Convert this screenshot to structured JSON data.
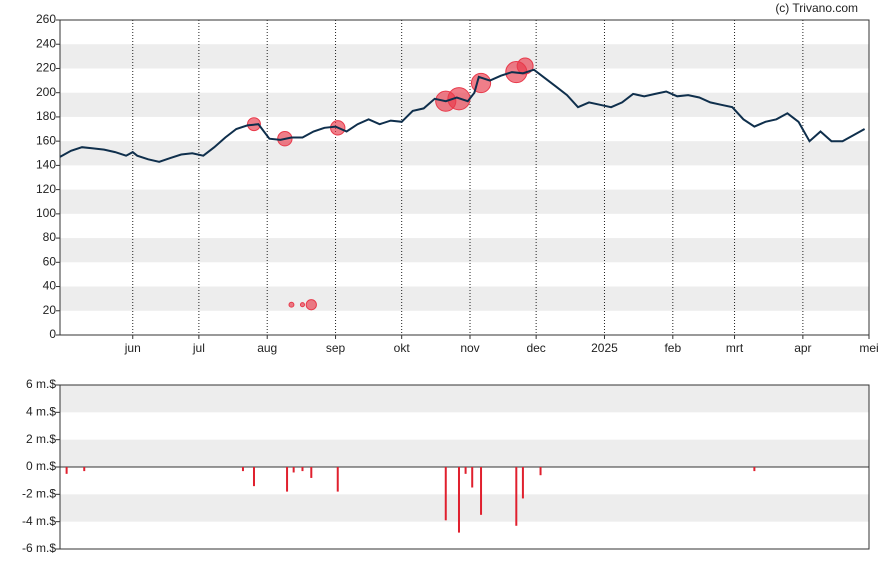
{
  "source": "(c) Trivano.com",
  "chart_data": [
    {
      "type": "line",
      "color": "#0f2f4c",
      "grid": "bands",
      "x": [
        0,
        5,
        10,
        15,
        20,
        25,
        30,
        33,
        35,
        40,
        45,
        50,
        55,
        60,
        65,
        70,
        75,
        80,
        85,
        90,
        95,
        100,
        105,
        110,
        115,
        120,
        125,
        130,
        135,
        140,
        145,
        150,
        155,
        160,
        165,
        170,
        175,
        180,
        185,
        188,
        190,
        195,
        200,
        205,
        210,
        215,
        220,
        225,
        230,
        235,
        240,
        245,
        250,
        255,
        260,
        265,
        270,
        275,
        280,
        285,
        290,
        295,
        300,
        305,
        310,
        315,
        320,
        325,
        330,
        335,
        340,
        345,
        350,
        355,
        360,
        365
      ],
      "values": [
        147,
        152,
        155,
        154,
        153,
        151,
        148,
        151,
        148,
        145,
        143,
        146,
        149,
        150,
        148,
        155,
        163,
        170,
        173,
        174,
        162,
        161,
        163,
        163,
        168,
        171,
        172,
        168,
        174,
        178,
        174,
        177,
        176,
        185,
        187,
        195,
        193,
        196,
        193,
        200,
        213,
        210,
        214,
        217,
        216,
        219,
        212,
        205,
        198,
        188,
        192,
        190,
        188,
        192,
        199,
        197,
        199,
        201,
        197,
        198,
        196,
        192,
        190,
        188,
        178,
        172,
        176,
        178,
        183,
        176,
        160,
        168,
        160,
        160,
        165,
        170
      ],
      "trades": {
        "color": "#e8394a",
        "x": [
          88,
          102,
          126,
          175,
          181,
          191,
          207,
          211,
          105,
          110,
          114
        ],
        "y": [
          174,
          162,
          171,
          193,
          195,
          208,
          217,
          222,
          25,
          25,
          25
        ],
        "size": [
          1.4,
          1.8,
          1.8,
          3.9,
          4.8,
          3.5,
          4.3,
          2.3,
          0.1,
          0.05,
          0.8
        ]
      },
      "xlim": [
        0,
        367
      ],
      "xticks": [
        {
          "value": 33,
          "label": "jun"
        },
        {
          "value": 63,
          "label": "jul"
        },
        {
          "value": 94,
          "label": "aug"
        },
        {
          "value": 125,
          "label": "sep"
        },
        {
          "value": 155,
          "label": "okt"
        },
        {
          "value": 186,
          "label": "nov"
        },
        {
          "value": 216,
          "label": "dec"
        },
        {
          "value": 247,
          "label": "2025"
        },
        {
          "value": 278,
          "label": "feb"
        },
        {
          "value": 306,
          "label": "mrt"
        },
        {
          "value": 337,
          "label": "apr"
        },
        {
          "value": 367,
          "label": "mei"
        }
      ],
      "ylim": [
        0,
        260
      ],
      "yticks": [
        0,
        20,
        40,
        60,
        80,
        100,
        120,
        140,
        160,
        180,
        200,
        220,
        240,
        260
      ]
    },
    {
      "type": "bar",
      "color": "#e0202e",
      "grid": "bands",
      "x": [
        3,
        11,
        83,
        88,
        103,
        106,
        110,
        114,
        126,
        175,
        181,
        184,
        187,
        191,
        207,
        210,
        218,
        315
      ],
      "values": [
        -0.5,
        -0.3,
        -0.3,
        -1.4,
        -1.8,
        -0.4,
        -0.3,
        -0.8,
        -1.8,
        -3.9,
        -4.8,
        -0.5,
        -1.5,
        -3.5,
        -4.3,
        -2.3,
        -0.6,
        -0.3
      ],
      "xlim": [
        0,
        367
      ],
      "ylim": [
        -6,
        6
      ],
      "yticks": [
        {
          "value": -6,
          "label": "-6 m.$"
        },
        {
          "value": -4,
          "label": "-4 m.$"
        },
        {
          "value": -2,
          "label": "-2 m.$"
        },
        {
          "value": 0,
          "label": "0 m.$"
        },
        {
          "value": 2,
          "label": "2 m.$"
        },
        {
          "value": 4,
          "label": "4 m.$"
        },
        {
          "value": 6,
          "label": "6 m.$"
        }
      ]
    }
  ]
}
